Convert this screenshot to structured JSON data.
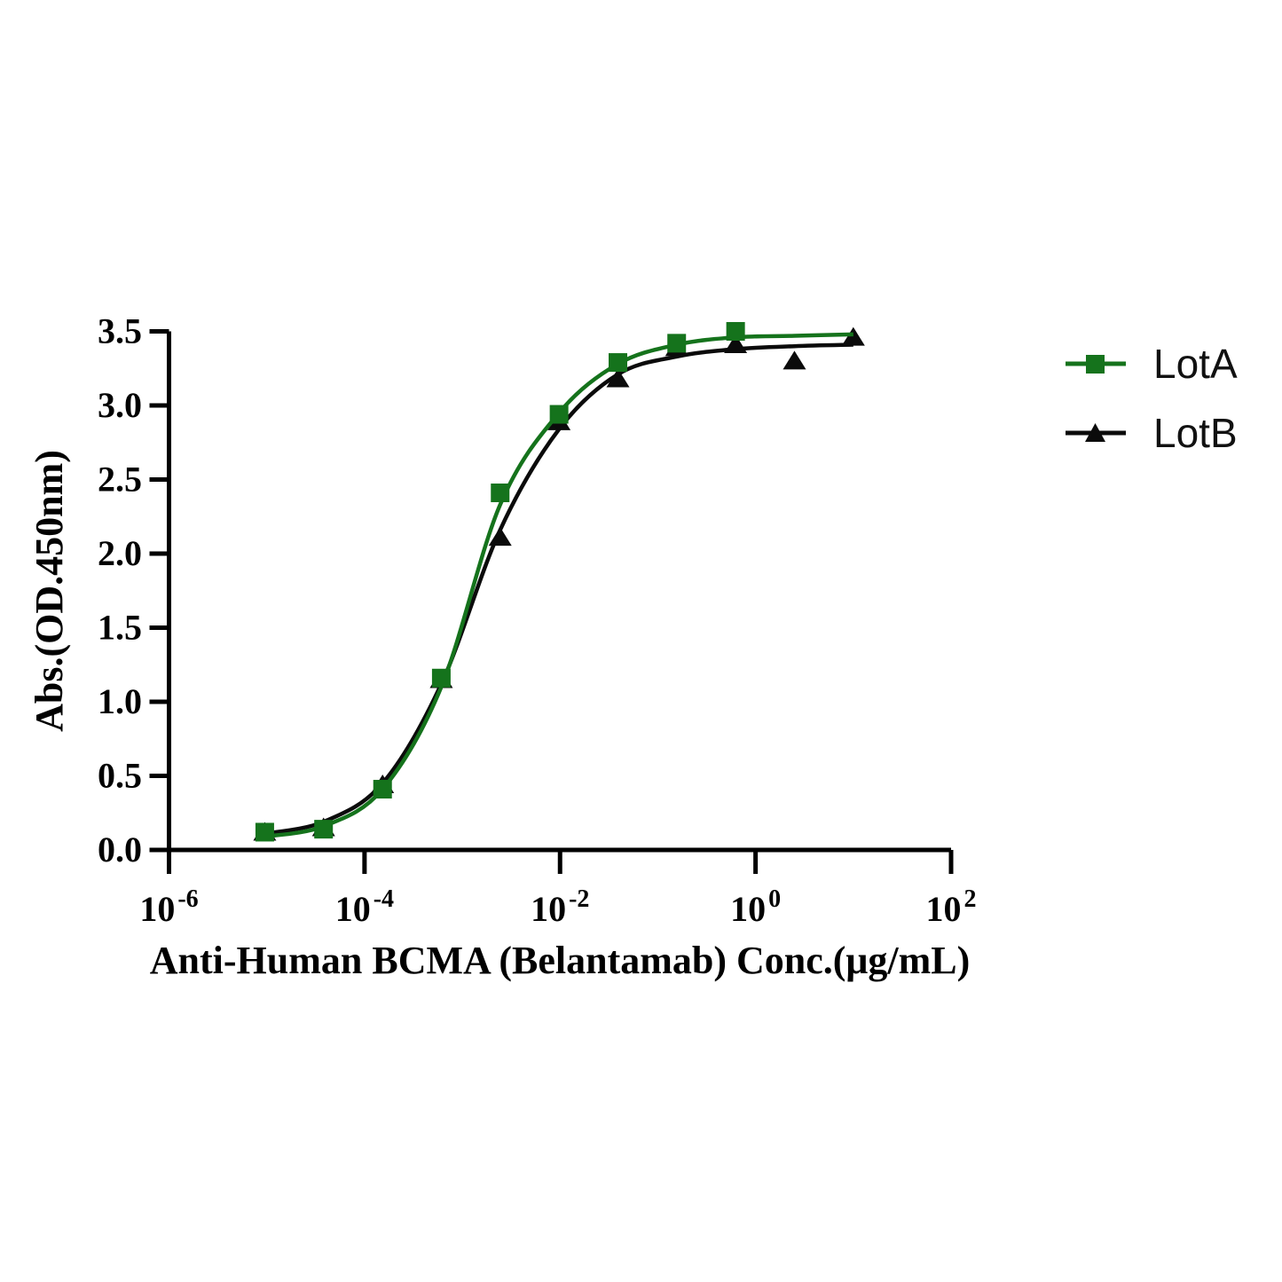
{
  "chart_data": {
    "type": "line",
    "title": "",
    "xlabel": "Anti-Human BCMA (Belantamab) Conc.(μg/mL)",
    "ylabel": "Abs.(OD.450nm)",
    "x_scale": "log10",
    "xlim_log10": [
      -6,
      2
    ],
    "ylim": [
      0,
      3.5
    ],
    "grid": false,
    "legend_position": "right-of-plot",
    "axis_color": "#000000",
    "background_color": "#ffffff",
    "x_ticks": [
      {
        "label_base": "10",
        "label_exp": "-6",
        "value": 1e-06
      },
      {
        "label_base": "10",
        "label_exp": "-4",
        "value": 0.0001
      },
      {
        "label_base": "10",
        "label_exp": "-2",
        "value": 0.01
      },
      {
        "label_base": "10",
        "label_exp": "0",
        "value": 1
      },
      {
        "label_base": "10",
        "label_exp": "2",
        "value": 100
      }
    ],
    "y_ticks": [
      {
        "label": "0.0",
        "value": 0
      },
      {
        "label": "0.5",
        "value": 0.5
      },
      {
        "label": "1.0",
        "value": 1
      },
      {
        "label": "1.5",
        "value": 1.5
      },
      {
        "label": "2.0",
        "value": 2
      },
      {
        "label": "2.5",
        "value": 2.5
      },
      {
        "label": "3.0",
        "value": 3
      },
      {
        "label": "3.5",
        "value": 3.5
      }
    ],
    "series": [
      {
        "name": "LotA",
        "color": "#15731c",
        "marker": "square",
        "points": [
          [
            9.54e-06,
            0.12
          ],
          [
            3.81e-05,
            0.14
          ],
          [
            0.000153,
            0.41
          ],
          [
            0.00061,
            1.16
          ],
          [
            0.00244,
            2.41
          ],
          [
            0.00977,
            2.94
          ],
          [
            0.0391,
            3.29
          ],
          [
            0.156,
            3.42
          ],
          [
            0.625,
            3.5
          ]
        ],
        "fit_curve": [
          [
            9.54e-06,
            0.09
          ],
          [
            3.81e-05,
            0.16
          ],
          [
            0.000153,
            0.41
          ],
          [
            0.00061,
            1.1
          ],
          [
            0.00244,
            2.33
          ],
          [
            0.00977,
            2.95
          ],
          [
            0.0391,
            3.28
          ],
          [
            0.156,
            3.41
          ],
          [
            0.625,
            3.46
          ],
          [
            2.5,
            3.47
          ],
          [
            10,
            3.48
          ]
        ]
      },
      {
        "name": "LotB",
        "color": "#0b0b0b",
        "marker": "triangle",
        "points": [
          [
            9.54e-06,
            0.12
          ],
          [
            3.81e-05,
            0.15
          ],
          [
            0.000153,
            0.44
          ],
          [
            0.00061,
            1.15
          ],
          [
            0.00244,
            2.11
          ],
          [
            0.00977,
            2.89
          ],
          [
            0.0391,
            3.18
          ],
          [
            0.156,
            3.39
          ],
          [
            0.625,
            3.41
          ],
          [
            2.5,
            3.3
          ],
          [
            10,
            3.46
          ]
        ],
        "fit_curve": [
          [
            9.54e-06,
            0.11
          ],
          [
            3.81e-05,
            0.19
          ],
          [
            0.000153,
            0.45
          ],
          [
            0.00061,
            1.12
          ],
          [
            0.00244,
            2.16
          ],
          [
            0.00977,
            2.84
          ],
          [
            0.0391,
            3.21
          ],
          [
            0.156,
            3.33
          ],
          [
            0.625,
            3.38
          ],
          [
            2.5,
            3.4
          ],
          [
            10,
            3.41
          ]
        ]
      }
    ]
  }
}
